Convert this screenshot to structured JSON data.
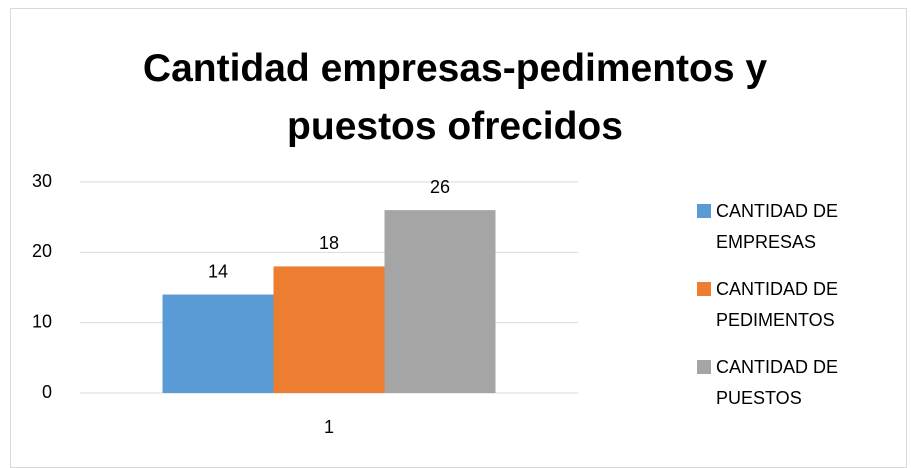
{
  "chart_data": {
    "type": "bar",
    "title": "Cantidad empresas-pedimentos y puestos ofrecidos",
    "categories": [
      "1"
    ],
    "series": [
      {
        "name": "CANTIDAD DE EMPRESAS",
        "color": "#5b9bd5",
        "values": [
          14
        ]
      },
      {
        "name": "CANTIDAD DE PEDIMENTOS",
        "color": "#ed7d31",
        "values": [
          18
        ]
      },
      {
        "name": "CANTIDAD DE PUESTOS",
        "color": "#a5a5a5",
        "values": [
          26
        ]
      }
    ],
    "ylim": [
      0,
      30
    ],
    "yticks": [
      0,
      10,
      20,
      30
    ],
    "grid": true,
    "legend": "right"
  }
}
